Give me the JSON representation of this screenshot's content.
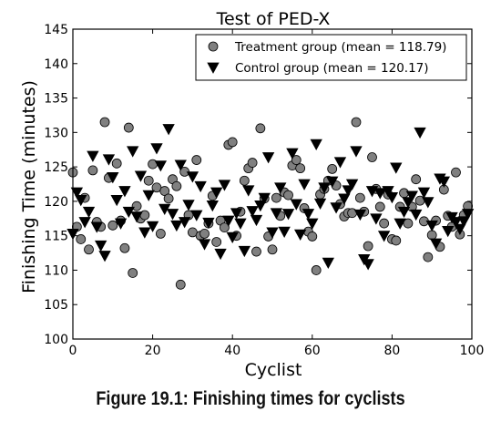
{
  "caption": "Figure 19.1: Finishing times for cyclists",
  "chart_data": {
    "type": "scatter",
    "title": "Test of PED-X",
    "xlabel": "Cyclist",
    "ylabel": "Finishing Time (minutes)",
    "xlim": [
      0,
      100
    ],
    "ylim": [
      100,
      145
    ],
    "xticks": [
      0,
      20,
      40,
      60,
      80,
      100
    ],
    "yticks": [
      100,
      105,
      110,
      115,
      120,
      125,
      130,
      135,
      140,
      145
    ],
    "grid": false,
    "legend_position": "top-right",
    "series": [
      {
        "name": "Treatment group (mean = 118.79)",
        "marker": "circle",
        "color": "#808080",
        "x": [
          0,
          1,
          2,
          3,
          4,
          5,
          6,
          7,
          8,
          9,
          10,
          11,
          12,
          13,
          14,
          15,
          16,
          17,
          18,
          19,
          20,
          21,
          22,
          23,
          24,
          25,
          26,
          27,
          28,
          29,
          30,
          31,
          32,
          33,
          34,
          35,
          36,
          37,
          38,
          39,
          40,
          41,
          42,
          43,
          44,
          45,
          46,
          47,
          48,
          49,
          50,
          51,
          52,
          53,
          54,
          55,
          56,
          57,
          58,
          59,
          60,
          61,
          62,
          63,
          64,
          65,
          66,
          67,
          68,
          69,
          70,
          71,
          72,
          73,
          74,
          75,
          76,
          77,
          78,
          79,
          80,
          81,
          82,
          83,
          84,
          85,
          86,
          87,
          88,
          89,
          90,
          91,
          92,
          93,
          94,
          95,
          96,
          97,
          98,
          99
        ],
        "y": [
          124.2,
          116.3,
          114.5,
          120.5,
          113.0,
          124.5,
          117.0,
          116.3,
          131.5,
          123.4,
          116.5,
          125.5,
          117.2,
          113.2,
          130.7,
          109.6,
          119.3,
          117.5,
          118.0,
          123.0,
          125.4,
          122.0,
          115.3,
          121.5,
          120.4,
          123.2,
          122.2,
          107.9,
          124.3,
          118.0,
          115.5,
          126.0,
          115.0,
          115.3,
          116.8,
          120.8,
          114.1,
          117.2,
          116.2,
          128.2,
          128.6,
          115.0,
          118.5,
          123.0,
          124.8,
          125.6,
          112.7,
          130.6,
          120.4,
          114.9,
          113.0,
          120.5,
          117.9,
          121.3,
          120.9,
          125.2,
          126.0,
          124.8,
          119.0,
          115.6,
          114.9,
          110.0,
          121.0,
          121.8,
          123.0,
          124.7,
          122.3,
          119.6,
          117.8,
          118.3,
          118.3,
          131.5,
          120.5,
          118.5,
          113.5,
          126.4,
          121.8,
          119.2,
          116.8,
          121.0,
          114.5,
          114.3,
          119.2,
          121.2,
          116.8,
          119.2,
          123.2,
          120.1,
          117.1,
          111.9,
          115.1,
          117.2,
          113.4,
          121.7,
          117.9,
          116.3,
          124.2,
          115.2,
          118.0,
          119.3
        ]
      },
      {
        "name": "Control group (mean = 120.17)",
        "marker": "triangle-down",
        "color": "#000000",
        "x": [
          0,
          1,
          2,
          3,
          4,
          5,
          6,
          7,
          8,
          9,
          10,
          11,
          12,
          13,
          14,
          15,
          16,
          17,
          18,
          19,
          20,
          21,
          22,
          23,
          24,
          25,
          26,
          27,
          28,
          29,
          30,
          31,
          32,
          33,
          34,
          35,
          36,
          37,
          38,
          39,
          40,
          41,
          42,
          43,
          44,
          45,
          46,
          47,
          48,
          49,
          50,
          51,
          52,
          53,
          54,
          55,
          56,
          57,
          58,
          59,
          60,
          61,
          62,
          63,
          64,
          65,
          66,
          67,
          68,
          69,
          70,
          71,
          72,
          73,
          74,
          75,
          76,
          77,
          78,
          79,
          80,
          81,
          82,
          83,
          84,
          85,
          86,
          87,
          88,
          89,
          90,
          91,
          92,
          93,
          94,
          95,
          96,
          97,
          98,
          99
        ],
        "y": [
          115.3,
          121.3,
          120.2,
          117.0,
          118.5,
          126.6,
          116.3,
          113.6,
          112.1,
          126.1,
          123.5,
          120.2,
          116.8,
          121.5,
          118.5,
          127.3,
          117.8,
          123.7,
          115.5,
          120.9,
          116.4,
          127.7,
          125.2,
          118.9,
          130.5,
          118.2,
          116.5,
          125.3,
          117.0,
          119.5,
          123.6,
          118.0,
          122.2,
          113.8,
          116.9,
          119.4,
          121.3,
          112.4,
          122.4,
          117.2,
          114.8,
          118.3,
          116.8,
          112.8,
          121.6,
          118.6,
          117.3,
          119.4,
          120.5,
          126.4,
          115.5,
          118.3,
          122.0,
          115.6,
          118.2,
          127.0,
          119.6,
          115.2,
          122.5,
          118.2,
          116.8,
          128.3,
          119.7,
          122.0,
          111.1,
          122.9,
          119.1,
          125.7,
          120.4,
          121.6,
          122.5,
          127.3,
          118.1,
          111.6,
          110.9,
          121.5,
          117.5,
          121.2,
          115.0,
          121.5,
          120.6,
          124.9,
          116.8,
          118.5,
          119.9,
          120.8,
          118.1,
          130.0,
          121.3,
          119.9,
          116.5,
          113.9,
          123.3,
          122.9,
          115.7,
          117.7,
          117.0,
          116.0,
          117.1,
          118.2
        ]
      }
    ]
  }
}
